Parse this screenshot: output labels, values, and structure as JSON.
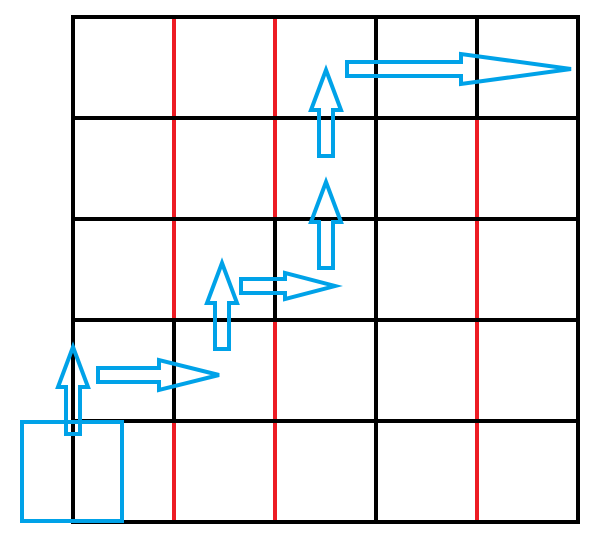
{
  "grid": {
    "rows": 5,
    "cols": 5
  },
  "colors": {
    "background": "#ffffff",
    "grid_line": "#000000",
    "highlight_line": "#ed1c24",
    "arrow": "#00a2e8"
  },
  "red_lines": [
    {
      "type": "vertical-segment",
      "col_boundary": 1,
      "segments": [
        [
          0,
          3
        ],
        [
          4,
          5
        ]
      ]
    },
    {
      "type": "vertical-segment",
      "col_boundary": 2,
      "segments": [
        [
          0,
          2
        ],
        [
          3,
          5
        ]
      ]
    },
    {
      "type": "vertical-segment",
      "col_boundary": 4,
      "segments": [
        [
          1,
          5
        ]
      ]
    }
  ],
  "black_overrides": [
    {
      "type": "vertical-segment",
      "col_boundary": 1,
      "segments": [
        [
          3,
          4
        ]
      ]
    },
    {
      "type": "vertical-segment",
      "col_boundary": 2,
      "segments": [
        [
          2,
          3
        ]
      ]
    }
  ],
  "start_cell": {
    "row": 4,
    "col": 0,
    "shape": "square",
    "color": "arrow"
  },
  "path_moves": [
    "up",
    "right",
    "up",
    "right",
    "up",
    "up",
    "right"
  ]
}
